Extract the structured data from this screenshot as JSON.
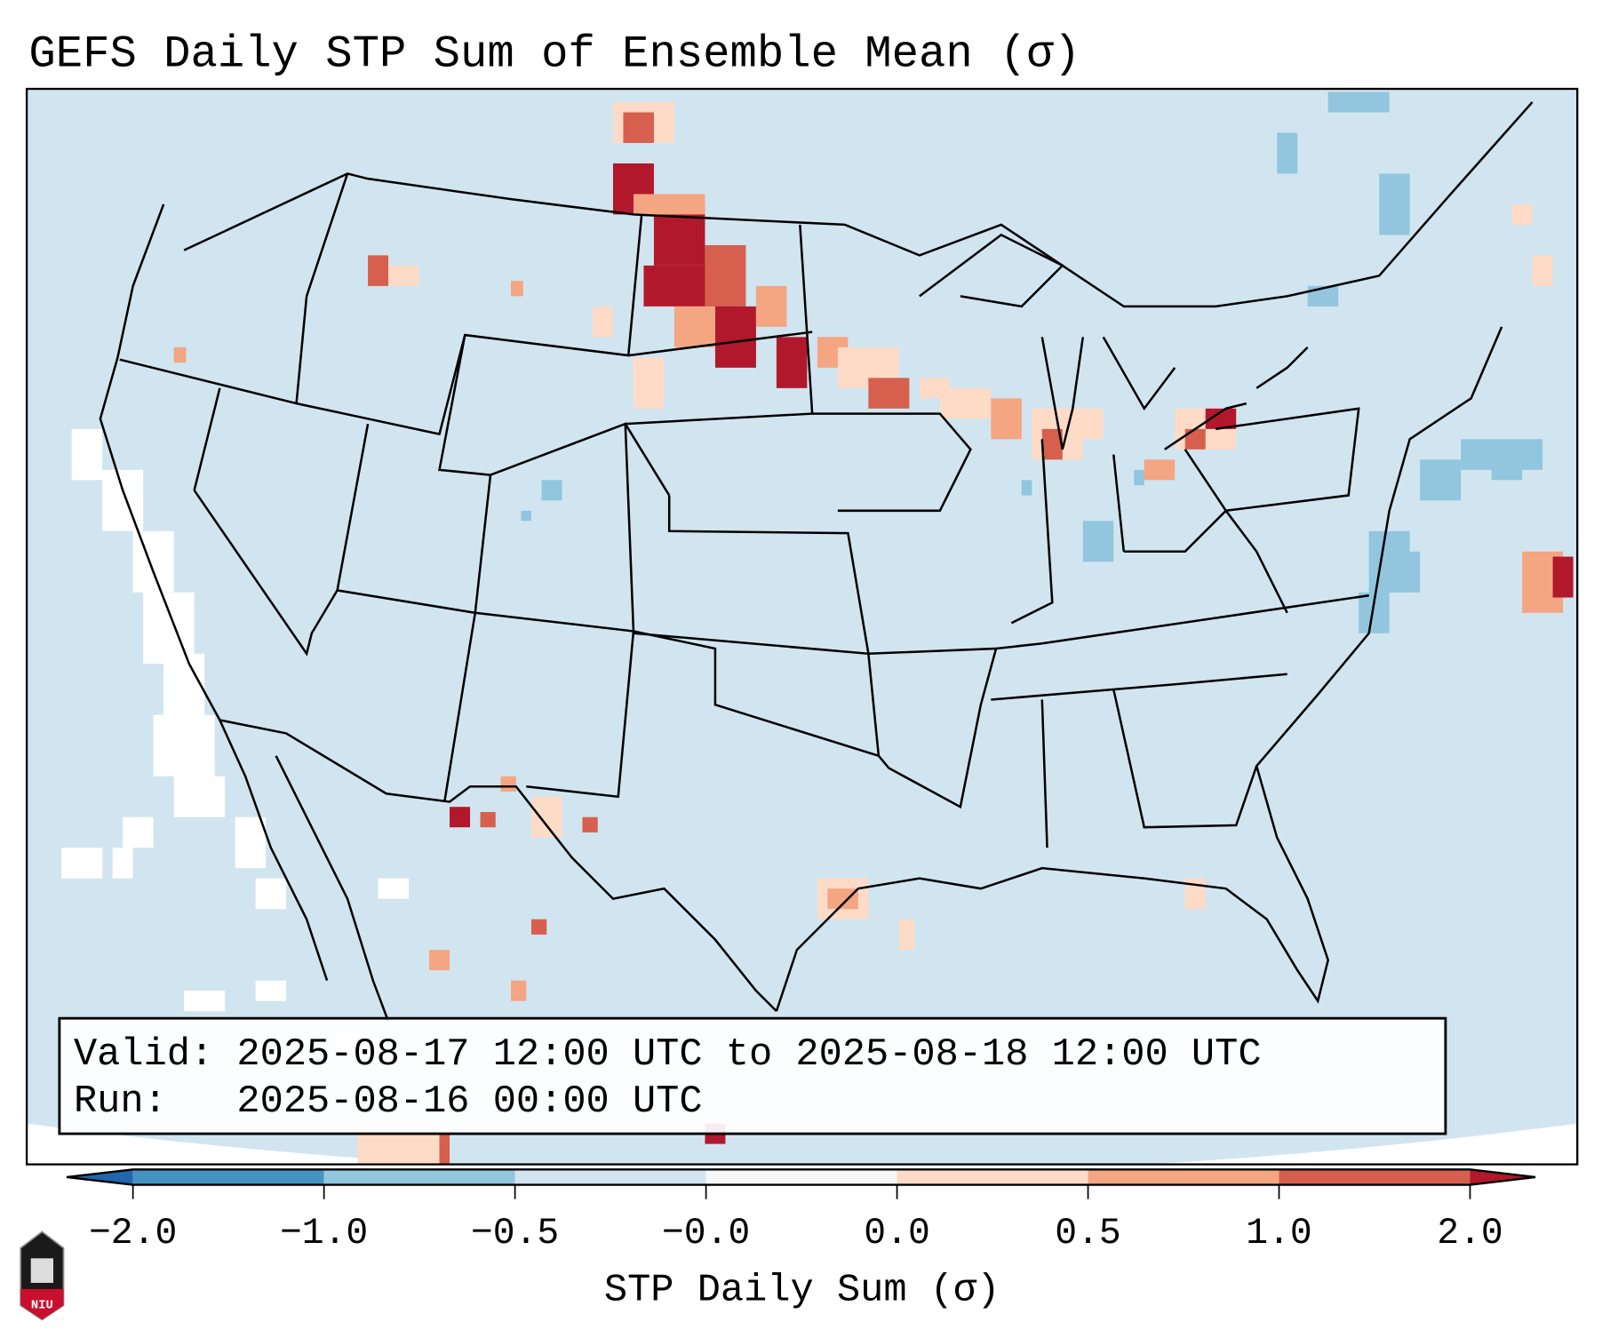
{
  "title": "GEFS Daily STP Sum of Ensemble Mean (σ)",
  "info": {
    "valid": "Valid: 2025-08-17 12:00 UTC to 2025-08-18 12:00 UTC",
    "run": "Run:   2025-08-16 00:00 UTC"
  },
  "colorbar": {
    "label": "STP Daily Sum (σ)",
    "ticks": [
      "−2.0",
      "−1.0",
      "−0.5",
      "−0.0",
      "0.0",
      "0.5",
      "1.0",
      "2.0"
    ],
    "colors": [
      "#2166ac",
      "#4393c3",
      "#92c5de",
      "#d1e5f0",
      "#f7f7f7",
      "#fddbc7",
      "#f4a582",
      "#d6604d",
      "#b2182b"
    ]
  },
  "map": {
    "background": "#d1e5f0",
    "land_outside": "#ffffff"
  },
  "logo": {
    "text": "NIU"
  }
}
